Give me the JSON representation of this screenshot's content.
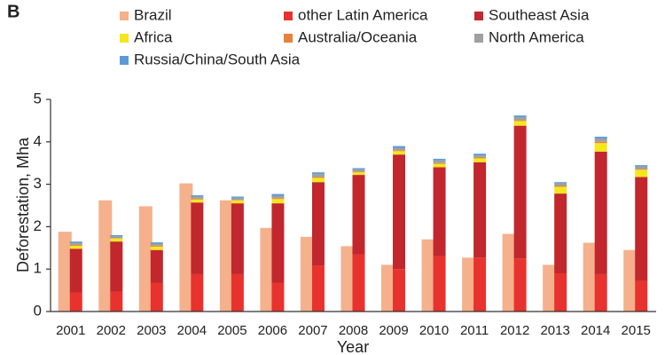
{
  "panel_label": "B",
  "chart_data": {
    "type": "bar",
    "xlabel": "Year",
    "ylabel": "Deforestation, Mha",
    "categories": [
      "2001",
      "2002",
      "2003",
      "2004",
      "2005",
      "2006",
      "2007",
      "2008",
      "2009",
      "2010",
      "2011",
      "2012",
      "2013",
      "2014",
      "2015"
    ],
    "ylim": [
      0,
      5
    ],
    "yticks": [
      0,
      1,
      2,
      3,
      4,
      5
    ],
    "grid": false,
    "series": [
      {
        "name": "Brazil",
        "color": "#f5b08c",
        "values": [
          1.88,
          2.62,
          2.48,
          3.02,
          2.62,
          1.97,
          1.76,
          1.54,
          1.1,
          1.7,
          1.27,
          1.83,
          1.1,
          1.62,
          1.45
        ]
      },
      {
        "name": "other Latin America",
        "color": "#e8322e",
        "values": [
          0.45,
          0.47,
          0.68,
          0.88,
          0.88,
          0.68,
          1.08,
          1.35,
          1.0,
          1.3,
          1.27,
          1.25,
          0.9,
          0.88,
          0.72
        ]
      },
      {
        "name": "Southeast Asia",
        "color": "#c1272d",
        "values": [
          1.03,
          1.18,
          0.77,
          1.69,
          1.67,
          1.87,
          1.97,
          1.87,
          2.7,
          2.1,
          2.25,
          3.13,
          1.88,
          2.89,
          2.45
        ]
      },
      {
        "name": "Africa",
        "color": "#f5e61e",
        "values": [
          0.07,
          0.07,
          0.08,
          0.07,
          0.07,
          0.1,
          0.1,
          0.06,
          0.08,
          0.08,
          0.09,
          0.11,
          0.16,
          0.2,
          0.17
        ]
      },
      {
        "name": "Australia/Oceania",
        "color": "#e8823a",
        "values": [
          0.02,
          0.01,
          0.02,
          0.02,
          0.01,
          0.02,
          0.02,
          0.02,
          0.02,
          0.02,
          0.02,
          0.02,
          0.02,
          0.03,
          0.02
        ]
      },
      {
        "name": "North America",
        "color": "#a0a0a0",
        "values": [
          0.05,
          0.04,
          0.05,
          0.05,
          0.05,
          0.06,
          0.07,
          0.05,
          0.06,
          0.06,
          0.05,
          0.07,
          0.06,
          0.08,
          0.06
        ]
      },
      {
        "name": "Russia/China/South Asia",
        "color": "#5b9bd5",
        "values": [
          0.03,
          0.03,
          0.03,
          0.03,
          0.03,
          0.04,
          0.04,
          0.03,
          0.04,
          0.04,
          0.04,
          0.04,
          0.03,
          0.04,
          0.03
        ]
      }
    ]
  }
}
